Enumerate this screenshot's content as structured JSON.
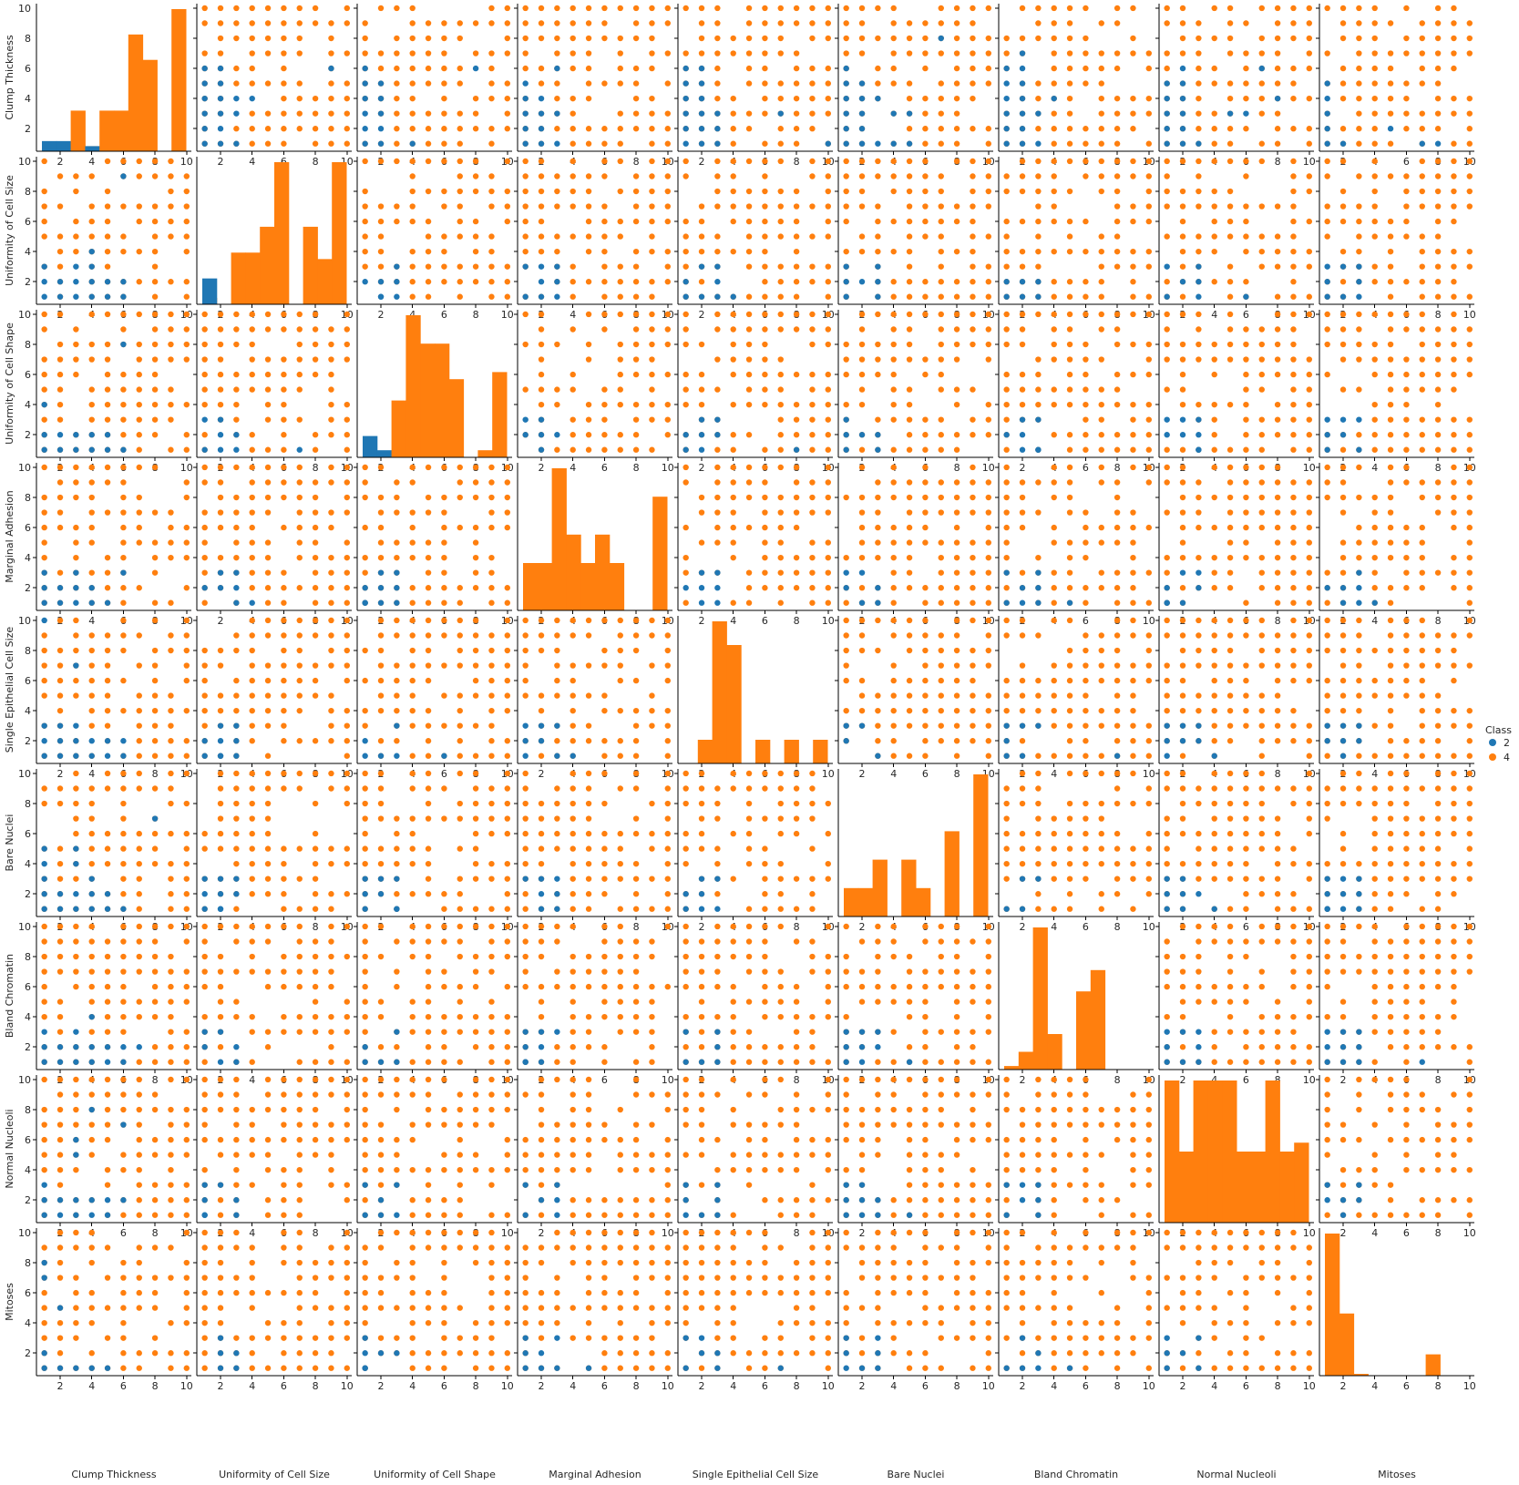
{
  "chart_data": {
    "type": "scatter",
    "title": "",
    "variables": [
      "Clump Thickness",
      "Uniformity of Cell Size",
      "Uniformity of Cell Shape",
      "Marginal Adhesion",
      "Single Epithelial Cell Size",
      "Bare Nuclei",
      "Bland Chromatin",
      "Normal Nucleoli",
      "Mitoses"
    ],
    "axis_range": [
      0.5,
      10.3
    ],
    "ticks": [
      2,
      4,
      6,
      8,
      10
    ],
    "grid": false,
    "legend": {
      "title": "Class",
      "placement": "right",
      "entries": [
        {
          "label": "2",
          "color": "#1f77b4"
        },
        {
          "label": "4",
          "color": "#ff7f0e"
        }
      ]
    },
    "diagonal_type": "histogram",
    "diagonal_hist": [
      {
        "variable": "Clump Thickness",
        "counts_2": [
          2,
          2,
          0,
          1,
          0,
          0,
          0,
          0,
          0,
          0
        ],
        "counts_4": [
          0,
          0,
          8,
          1,
          8,
          8,
          23,
          18,
          0,
          28
        ]
      },
      {
        "variable": "Uniformity of Cell Size",
        "counts_2": [
          4,
          0,
          0,
          0,
          0,
          0,
          0,
          0,
          0,
          0
        ],
        "counts_4": [
          1,
          0,
          8,
          8,
          12,
          22,
          0,
          12,
          7,
          22
        ]
      },
      {
        "variable": "Uniformity of Cell Shape",
        "counts_2": [
          3,
          1,
          0,
          0,
          0,
          0,
          0,
          0,
          0,
          0
        ],
        "counts_4": [
          0,
          0,
          8,
          20,
          16,
          16,
          11,
          0,
          1,
          12
        ]
      },
      {
        "variable": "Marginal Adhesion",
        "counts_2": [
          0,
          0,
          0,
          0,
          0,
          0,
          0,
          0,
          0,
          0
        ],
        "counts_4": [
          5,
          5,
          15,
          8,
          5,
          8,
          5,
          0,
          0,
          12
        ]
      },
      {
        "variable": "Single Epithelial Cell Size",
        "counts_2": [
          0,
          0,
          0,
          0,
          0,
          0,
          0,
          0,
          0,
          0
        ],
        "counts_4": [
          0,
          3,
          18,
          15,
          0,
          3,
          0,
          3,
          0,
          3
        ]
      },
      {
        "variable": "Bare Nuclei",
        "counts_2": [
          0,
          0,
          0,
          0,
          0,
          0,
          0,
          0,
          0,
          0
        ],
        "counts_4": [
          5,
          5,
          10,
          0,
          10,
          5,
          0,
          15,
          0,
          25
        ]
      },
      {
        "variable": "Bland Chromatin",
        "counts_2": [
          0,
          0,
          0,
          0,
          0,
          0,
          0,
          0,
          0,
          0
        ],
        "counts_4": [
          1,
          5,
          40,
          10,
          0,
          22,
          28,
          0,
          0,
          0
        ]
      },
      {
        "variable": "Normal Nucleoli",
        "counts_2": [
          0,
          0,
          0,
          0,
          0,
          0,
          0,
          0,
          0,
          0
        ],
        "counts_4": [
          16,
          8,
          16,
          16,
          16,
          8,
          8,
          16,
          8,
          9
        ]
      },
      {
        "variable": "Mitoses",
        "counts_2": [
          0,
          0,
          0,
          0,
          0,
          0,
          0,
          0,
          0,
          0
        ],
        "counts_4": [
          80,
          35,
          1,
          0,
          0,
          0,
          0,
          12,
          0,
          0
        ]
      }
    ],
    "scatter": {
      "note_for_grid": "off-diagonal cells show paired integer values 1-10 of each variable, colored by Class",
      "class_4_points_per_cell": "dense lattice of integer pairs",
      "class_2_points": {
        "Clump Thickness|Uniformity of Cell Size": [
          [
            1,
            1
          ],
          [
            2,
            1
          ],
          [
            3,
            1
          ],
          [
            4,
            1
          ],
          [
            5,
            1
          ],
          [
            6,
            1
          ],
          [
            1,
            2
          ],
          [
            2,
            2
          ],
          [
            3,
            2
          ],
          [
            4,
            2
          ],
          [
            5,
            2
          ],
          [
            6,
            2
          ],
          [
            1,
            3
          ],
          [
            3,
            3
          ],
          [
            4,
            3
          ],
          [
            4,
            4
          ],
          [
            6,
            9
          ]
        ],
        "Clump Thickness|Uniformity of Cell Shape": [
          [
            1,
            1
          ],
          [
            2,
            1
          ],
          [
            3,
            1
          ],
          [
            4,
            1
          ],
          [
            5,
            1
          ],
          [
            6,
            1
          ],
          [
            1,
            2
          ],
          [
            2,
            2
          ],
          [
            3,
            2
          ],
          [
            4,
            2
          ],
          [
            5,
            2
          ],
          [
            1,
            4
          ],
          [
            6,
            8
          ]
        ],
        "Clump Thickness|Marginal Adhesion": [
          [
            1,
            1
          ],
          [
            2,
            1
          ],
          [
            3,
            1
          ],
          [
            4,
            1
          ],
          [
            5,
            1
          ],
          [
            1,
            2
          ],
          [
            2,
            2
          ],
          [
            3,
            2
          ],
          [
            4,
            2
          ],
          [
            1,
            3
          ],
          [
            3,
            3
          ],
          [
            6,
            3
          ]
        ],
        "Clump Thickness|Single Epithelial Cell Size": [
          [
            1,
            1
          ],
          [
            2,
            1
          ],
          [
            3,
            1
          ],
          [
            4,
            1
          ],
          [
            5,
            1
          ],
          [
            6,
            1
          ],
          [
            1,
            2
          ],
          [
            2,
            2
          ],
          [
            3,
            2
          ],
          [
            4,
            2
          ],
          [
            5,
            2
          ],
          [
            6,
            2
          ],
          [
            1,
            3
          ],
          [
            2,
            3
          ],
          [
            3,
            3
          ],
          [
            1,
            10
          ],
          [
            3,
            7
          ]
        ],
        "Clump Thickness|Bare Nuclei": [
          [
            1,
            1
          ],
          [
            2,
            1
          ],
          [
            3,
            1
          ],
          [
            4,
            1
          ],
          [
            5,
            1
          ],
          [
            6,
            1
          ],
          [
            1,
            2
          ],
          [
            2,
            2
          ],
          [
            3,
            2
          ],
          [
            4,
            2
          ],
          [
            5,
            2
          ],
          [
            1,
            3
          ],
          [
            1,
            4
          ],
          [
            3,
            4
          ],
          [
            4,
            3
          ],
          [
            1,
            5
          ],
          [
            3,
            5
          ],
          [
            8,
            7
          ]
        ],
        "Clump Thickness|Bland Chromatin": [
          [
            1,
            1
          ],
          [
            2,
            1
          ],
          [
            3,
            1
          ],
          [
            4,
            1
          ],
          [
            5,
            1
          ],
          [
            6,
            1
          ],
          [
            1,
            2
          ],
          [
            2,
            2
          ],
          [
            3,
            2
          ],
          [
            4,
            2
          ],
          [
            5,
            2
          ],
          [
            6,
            2
          ],
          [
            7,
            2
          ],
          [
            1,
            3
          ],
          [
            3,
            3
          ],
          [
            4,
            4
          ]
        ],
        "Clump Thickness|Normal Nucleoli": [
          [
            1,
            1
          ],
          [
            2,
            1
          ],
          [
            3,
            1
          ],
          [
            4,
            1
          ],
          [
            5,
            1
          ],
          [
            1,
            2
          ],
          [
            2,
            2
          ],
          [
            3,
            2
          ],
          [
            4,
            2
          ],
          [
            5,
            2
          ],
          [
            6,
            2
          ],
          [
            1,
            3
          ],
          [
            3,
            5
          ],
          [
            3,
            6
          ],
          [
            4,
            8
          ],
          [
            6,
            7
          ]
        ],
        "Clump Thickness|Mitoses": [
          [
            1,
            1
          ],
          [
            2,
            1
          ],
          [
            3,
            1
          ],
          [
            4,
            1
          ],
          [
            5,
            1
          ],
          [
            1,
            2
          ],
          [
            2,
            5
          ],
          [
            1,
            7
          ],
          [
            1,
            8
          ]
        ]
      }
    }
  }
}
